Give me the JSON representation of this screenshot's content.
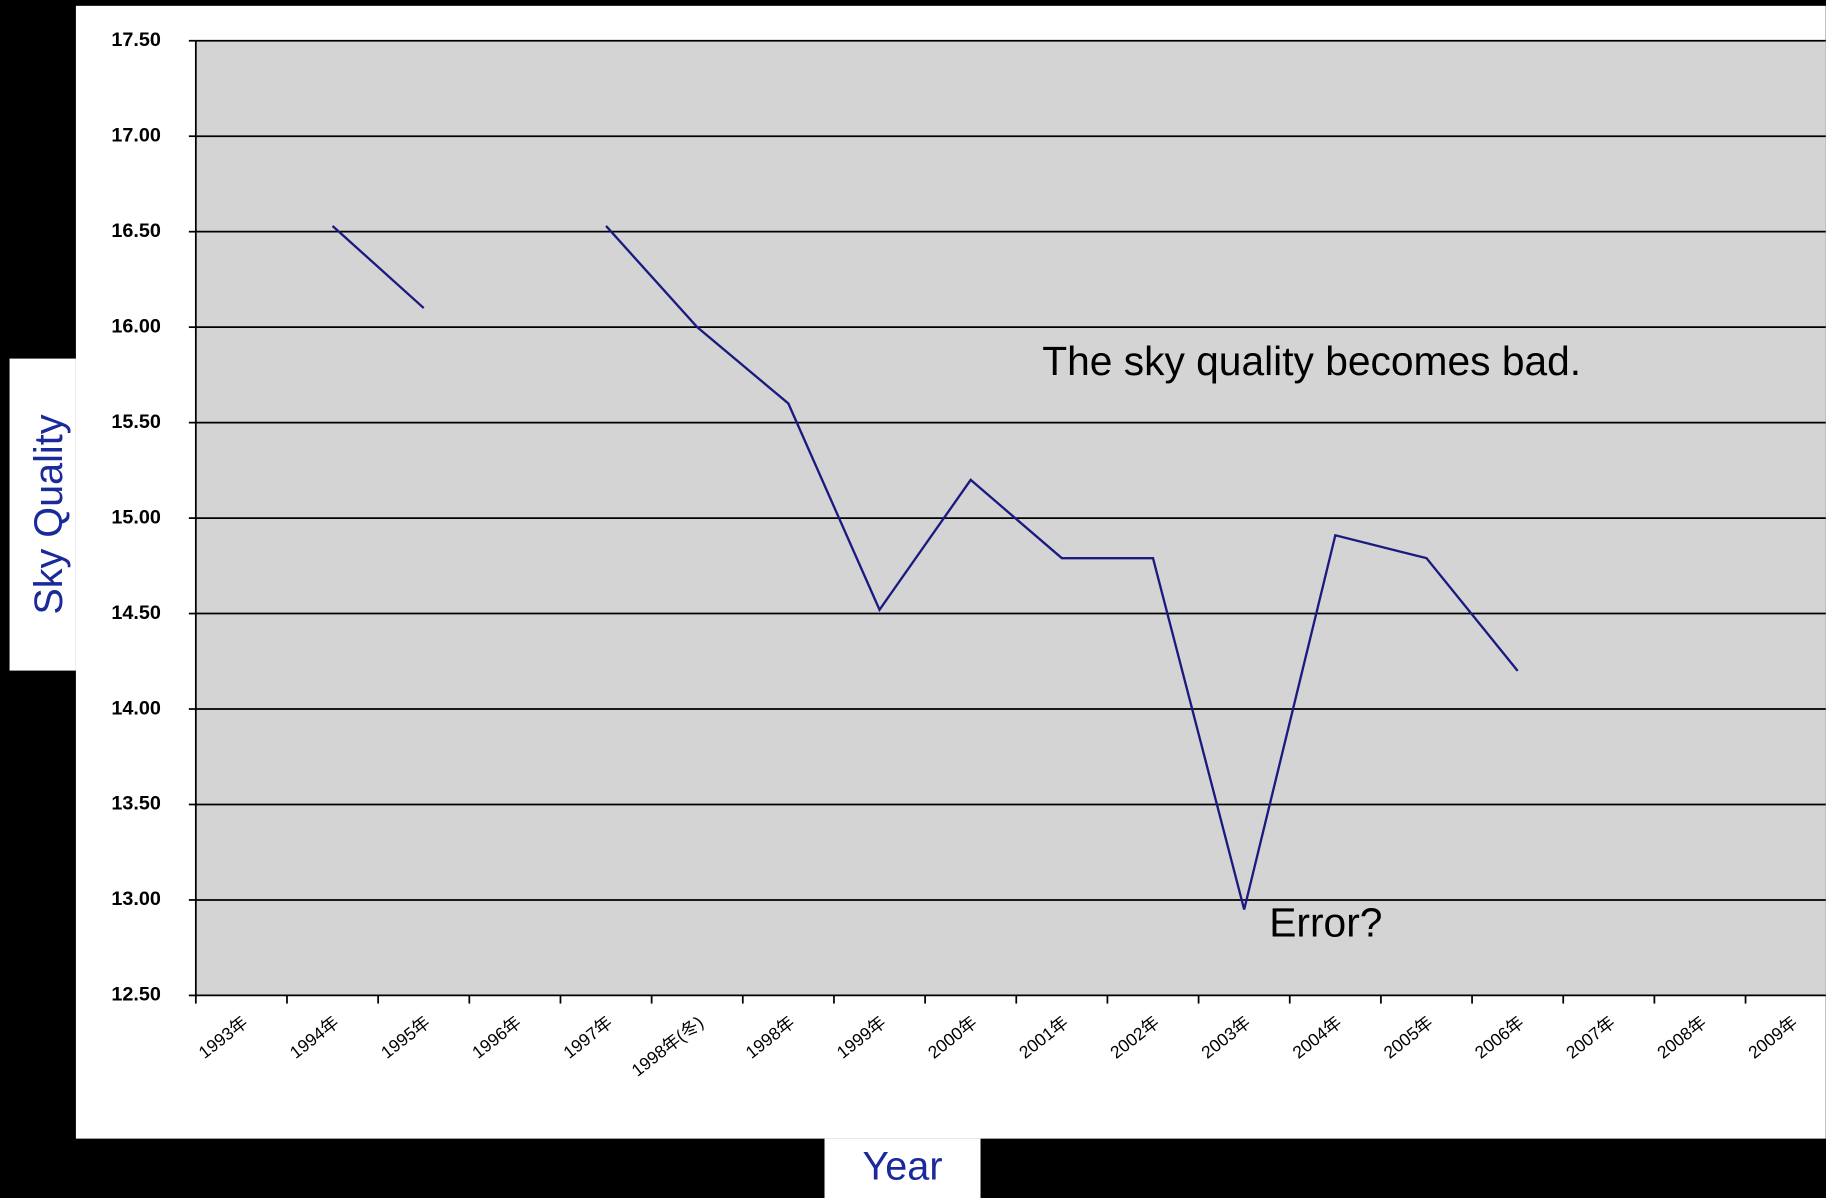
{
  "chart_data": {
    "type": "line",
    "x_label": "Year",
    "y_label": "Sky Quality",
    "annotations": [
      "The sky quality becomes bad.",
      "Error?"
    ],
    "categories": [
      "1993年",
      "1994年",
      "1995年",
      "1996年",
      "1997年",
      "1998年(冬)",
      "1998年",
      "1999年",
      "2000年",
      "2001年",
      "2002年",
      "2003年",
      "2004年",
      "2005年",
      "2006年",
      "2007年",
      "2008年",
      "2009年"
    ],
    "values": [
      null,
      16.53,
      16.1,
      null,
      16.53,
      16.0,
      15.6,
      14.52,
      15.2,
      14.79,
      14.79,
      12.95,
      14.91,
      14.79,
      14.2,
      null,
      null,
      null
    ],
    "color": "#1a1a80",
    "ylim": [
      12.5,
      17.5
    ],
    "yticks": [
      {
        "value": 12.5,
        "label": "12.50"
      },
      {
        "value": 13,
        "label": "13.00"
      },
      {
        "value": 13.5,
        "label": "13.50"
      },
      {
        "value": 14,
        "label": "14.00"
      },
      {
        "value": 14.5,
        "label": "14.50"
      },
      {
        "value": 15,
        "label": "15.00"
      },
      {
        "value": 15.5,
        "label": "15.50"
      },
      {
        "value": 16,
        "label": "16.00"
      },
      {
        "value": 16.5,
        "label": "16.50"
      },
      {
        "value": 17,
        "label": "17.00"
      },
      {
        "value": 17.5,
        "label": "17.50"
      }
    ],
    "grid": true
  }
}
